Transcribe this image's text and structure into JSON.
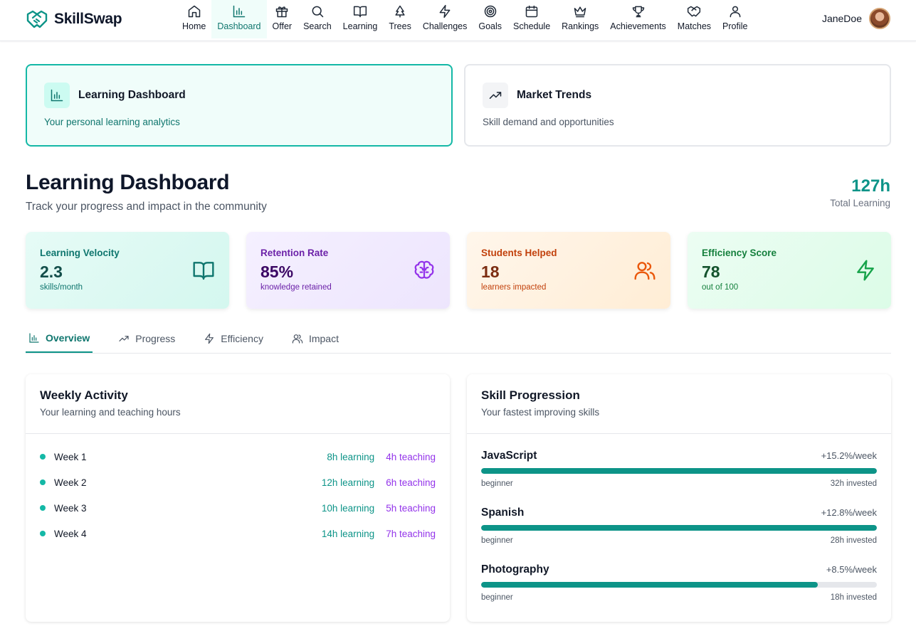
{
  "app": {
    "name": "SkillSwap"
  },
  "nav": {
    "items": [
      {
        "label": "Home",
        "icon": "home-icon"
      },
      {
        "label": "Dashboard",
        "icon": "bar-chart-icon"
      },
      {
        "label": "Offer",
        "icon": "gift-icon"
      },
      {
        "label": "Search",
        "icon": "search-icon"
      },
      {
        "label": "Learning",
        "icon": "book-icon"
      },
      {
        "label": "Trees",
        "icon": "tree-icon"
      },
      {
        "label": "Challenges",
        "icon": "zap-icon"
      },
      {
        "label": "Goals",
        "icon": "target-icon"
      },
      {
        "label": "Schedule",
        "icon": "calendar-icon"
      },
      {
        "label": "Rankings",
        "icon": "crown-icon"
      },
      {
        "label": "Achievements",
        "icon": "trophy-icon"
      },
      {
        "label": "Matches",
        "icon": "handshake-icon"
      },
      {
        "label": "Profile",
        "icon": "user-icon"
      }
    ],
    "active": "Dashboard"
  },
  "user": {
    "name": "JaneDoe"
  },
  "top_cards": {
    "learning": {
      "title": "Learning Dashboard",
      "subtitle": "Your personal learning analytics"
    },
    "market": {
      "title": "Market Trends",
      "subtitle": "Skill demand and opportunities"
    }
  },
  "header": {
    "title": "Learning Dashboard",
    "subtitle": "Track your progress and impact in the community",
    "total_value": "127h",
    "total_label": "Total Learning"
  },
  "stats": [
    {
      "label": "Learning Velocity",
      "value": "2.3",
      "unit": "skills/month",
      "icon": "book-open-icon",
      "color": "#0f766e"
    },
    {
      "label": "Retention Rate",
      "value": "85%",
      "unit": "knowledge retained",
      "icon": "brain-icon",
      "color": "#9333ea"
    },
    {
      "label": "Students Helped",
      "value": "18",
      "unit": "learners impacted",
      "icon": "users-icon",
      "color": "#ea580c"
    },
    {
      "label": "Efficiency Score",
      "value": "78",
      "unit": "out of 100",
      "icon": "zap-icon",
      "color": "#16a34a"
    }
  ],
  "tabs": [
    {
      "label": "Overview",
      "icon": "bar-chart-icon"
    },
    {
      "label": "Progress",
      "icon": "trending-up-icon"
    },
    {
      "label": "Efficiency",
      "icon": "zap-icon"
    },
    {
      "label": "Impact",
      "icon": "users-icon"
    }
  ],
  "weekly": {
    "title": "Weekly Activity",
    "subtitle": "Your learning and teaching hours",
    "rows": [
      {
        "week": "Week 1",
        "learning": "8h learning",
        "teaching": "4h teaching"
      },
      {
        "week": "Week 2",
        "learning": "12h learning",
        "teaching": "6h teaching"
      },
      {
        "week": "Week 3",
        "learning": "10h learning",
        "teaching": "5h teaching"
      },
      {
        "week": "Week 4",
        "learning": "14h learning",
        "teaching": "7h teaching"
      }
    ]
  },
  "skills": {
    "title": "Skill Progression",
    "subtitle": "Your fastest improving skills",
    "items": [
      {
        "name": "JavaScript",
        "rate": "+15.2%/week",
        "level": "beginner",
        "hours": "32h invested",
        "progress": 100
      },
      {
        "name": "Spanish",
        "rate": "+12.8%/week",
        "level": "beginner",
        "hours": "28h invested",
        "progress": 100
      },
      {
        "name": "Photography",
        "rate": "+8.5%/week",
        "level": "beginner",
        "hours": "18h invested",
        "progress": 85
      }
    ]
  }
}
